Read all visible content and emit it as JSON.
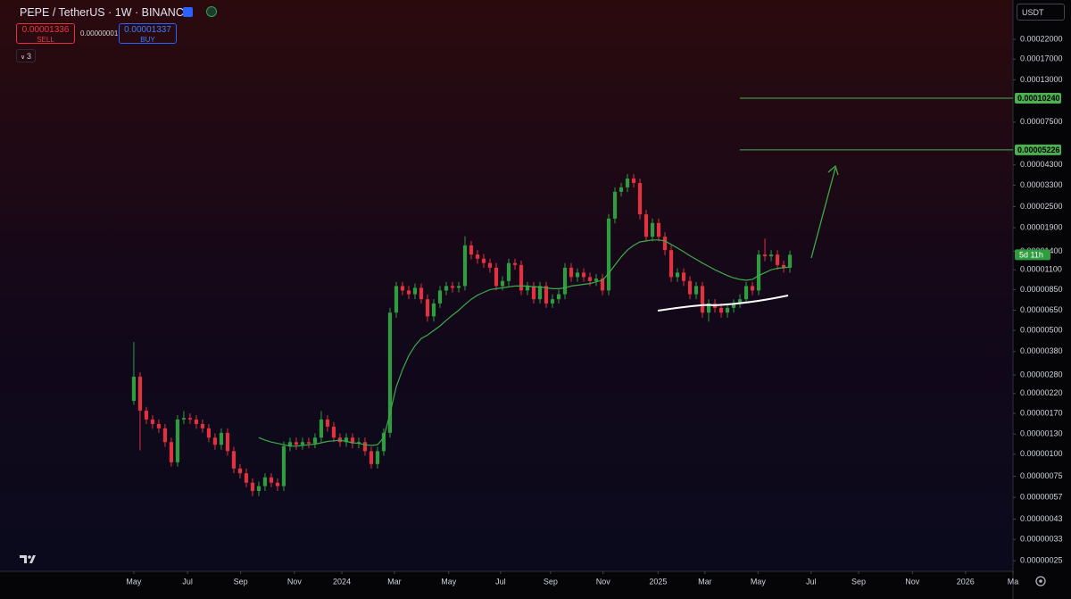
{
  "header": {
    "symbol": "PEPE / TetherUS · 1W · BINANCE",
    "sell_price": "0.00001336",
    "sell": "SELL",
    "spread": "0.00000001",
    "buy_price": "0.00001337",
    "buy": "BUY",
    "indicators": "3",
    "currency": "USDT",
    "countdown": "5d 11h"
  },
  "chart_data": {
    "type": "candlestick",
    "log_scale": true,
    "grid": false,
    "up_color": "#2f9d3f",
    "down_color": "#e0323f",
    "ma_color": "#3cab48",
    "level_color": "#4caf50",
    "x": [
      0,
      1,
      2,
      3,
      4,
      5,
      6,
      7,
      8,
      9,
      10,
      11,
      12,
      13,
      14,
      15,
      16,
      17,
      18,
      19,
      20,
      21,
      22,
      23,
      24,
      25,
      26,
      27,
      28,
      29,
      30,
      31,
      32,
      33,
      34,
      35,
      36,
      37,
      38,
      39,
      40,
      41,
      42,
      43,
      44,
      45,
      46,
      47,
      48,
      49,
      50,
      51,
      52,
      53,
      54,
      55,
      56,
      57,
      58,
      59,
      60,
      61,
      62,
      63,
      64,
      65,
      66,
      67,
      68,
      69,
      70,
      71,
      72,
      73,
      74,
      75,
      76,
      77,
      78,
      79,
      80,
      81,
      82,
      83,
      84,
      85,
      86,
      87,
      88,
      89,
      90,
      91,
      92,
      93,
      94,
      95,
      96,
      97,
      98,
      99,
      100,
      101,
      102,
      103,
      104,
      105
    ],
    "open": [
      2e-06,
      2.74e-06,
      1.76e-06,
      1.57e-06,
      1.48e-06,
      1.4e-06,
      1.17e-06,
      9e-07,
      1.57e-06,
      1.6e-06,
      1.57e-06,
      1.48e-06,
      1.4e-06,
      1.24e-06,
      1.13e-06,
      1.32e-06,
      1.04e-06,
      8.3e-07,
      7.8e-07,
      6.9e-07,
      6.2e-07,
      6.6e-07,
      7.4e-07,
      6.9e-07,
      6.6e-07,
      1.11e-06,
      1.17e-06,
      1.13e-06,
      1.17e-06,
      1.15e-06,
      1.24e-06,
      1.57e-06,
      1.43e-06,
      1.24e-06,
      1.17e-06,
      1.24e-06,
      1.15e-06,
      1.17e-06,
      1.04e-06,
      8.8e-07,
      1.04e-06,
      1.32e-06,
      6.3e-06,
      8.9e-06,
      8.4e-06,
      8e-06,
      8.7e-06,
      7.5e-06,
      6e-06,
      7.1e-06,
      8.4e-06,
      8.9e-06,
      8.7e-06,
      8.9e-06,
      1.51e-05,
      1.34e-05,
      1.27e-05,
      1.2e-05,
      1.13e-05,
      8.9e-06,
      9.5e-06,
      1.2e-05,
      1.17e-05,
      8.4e-06,
      8.9e-06,
      7.5e-06,
      8.9e-06,
      7.1e-06,
      7.5e-06,
      8e-06,
      1.13e-05,
      1e-05,
      1.06e-05,
      1e-05,
      9.5e-06,
      9.8e-06,
      8.4e-06,
      2.14e-05,
      3.03e-05,
      3.21e-05,
      3.6e-05,
      3.4e-05,
      2.26e-05,
      1.69e-05,
      2.02e-05,
      1.69e-05,
      1.42e-05,
      1e-05,
      1.06e-05,
      9.5e-06,
      8e-06,
      8.9e-06,
      6.3e-06,
      7.1e-06,
      6.7e-06,
      6.3e-06,
      6.7e-06,
      7.1e-06,
      7.5e-06,
      8.9e-06,
      8.4e-06,
      1.34e-05,
      1.31e-05,
      1.34e-05,
      1.17e-05,
      1.13e-05
    ],
    "high": [
      4.3e-06,
      2.9e-06,
      1.85e-06,
      1.66e-06,
      1.57e-06,
      1.48e-06,
      1.24e-06,
      1.66e-06,
      1.75e-06,
      1.7e-06,
      1.66e-06,
      1.57e-06,
      1.48e-06,
      1.31e-06,
      1.4e-06,
      1.4e-06,
      1.1e-06,
      8.8e-07,
      8.3e-07,
      7.3e-07,
      7e-07,
      7.8e-07,
      7.8e-07,
      7.3e-07,
      1.18e-06,
      1.24e-06,
      1.24e-06,
      1.24e-06,
      1.24e-06,
      1.31e-06,
      1.75e-06,
      1.66e-06,
      1.52e-06,
      1.31e-06,
      1.31e-06,
      1.31e-06,
      1.24e-06,
      1.24e-06,
      1.1e-06,
      1.1e-06,
      1.4e-06,
      6.7e-06,
      9.4e-06,
      9.4e-06,
      8.9e-06,
      9.2e-06,
      9.2e-06,
      8e-06,
      7.5e-06,
      8.9e-06,
      9.4e-06,
      9.4e-06,
      9.4e-06,
      1.7e-05,
      1.6e-05,
      1.42e-05,
      1.35e-05,
      1.27e-05,
      1.2e-05,
      1.01e-05,
      1.27e-05,
      1.27e-05,
      1.24e-05,
      9.4e-06,
      9.4e-06,
      9.4e-06,
      9.4e-06,
      8e-06,
      8.5e-06,
      1.2e-05,
      1.2e-05,
      1.12e-05,
      1.12e-05,
      1.06e-05,
      1.04e-05,
      1.04e-05,
      2.27e-05,
      3.21e-05,
      3.4e-05,
      3.82e-05,
      3.82e-05,
      3.6e-05,
      2.4e-05,
      2.14e-05,
      2.14e-05,
      1.79e-05,
      1.51e-05,
      1.12e-05,
      1.12e-05,
      1.01e-05,
      9.4e-06,
      9.4e-06,
      7.5e-06,
      7.5e-06,
      7.1e-06,
      7.1e-06,
      7.5e-06,
      8e-06,
      9.4e-06,
      9.4e-06,
      1.42e-05,
      1.65e-05,
      1.42e-05,
      1.42e-05,
      1.24e-05,
      1.41e-05
    ],
    "low": [
      1.9e-06,
      1.05e-06,
      1.48e-06,
      1.39e-06,
      1.32e-06,
      1.1e-06,
      8.5e-07,
      8.5e-07,
      1.48e-06,
      1.48e-06,
      1.39e-06,
      1.32e-06,
      1.17e-06,
      1.06e-06,
      1.06e-06,
      9.8e-07,
      7.8e-07,
      7.3e-07,
      6.5e-07,
      5.8e-07,
      5.8e-07,
      6.2e-07,
      6.5e-07,
      6.2e-07,
      6.2e-07,
      1.04e-06,
      1.06e-06,
      1.06e-06,
      1.08e-06,
      1.08e-06,
      1.17e-06,
      1.34e-06,
      1.17e-06,
      1.1e-06,
      1.1e-06,
      1.08e-06,
      1.08e-06,
      9.8e-07,
      8.3e-07,
      8.3e-07,
      9.8e-07,
      1.24e-06,
      5.9e-06,
      7.9e-06,
      7.5e-06,
      7.5e-06,
      7.1e-06,
      5.6e-06,
      5.6e-06,
      6.7e-06,
      7.9e-06,
      8.2e-06,
      8.2e-06,
      8.4e-06,
      1.26e-05,
      1.19e-05,
      1.13e-05,
      1.06e-05,
      8.4e-06,
      8.4e-06,
      8.9e-06,
      1.1e-05,
      7.9e-06,
      7.9e-06,
      7.1e-06,
      7.1e-06,
      6.7e-06,
      6.7e-06,
      7.1e-06,
      7.5e-06,
      9.4e-06,
      9.4e-06,
      9.4e-06,
      8.9e-06,
      8.9e-06,
      7.9e-06,
      7.9e-06,
      2.01e-05,
      2.85e-05,
      3.02e-05,
      3.2e-05,
      2.12e-05,
      1.59e-05,
      1.59e-05,
      1.59e-05,
      1.33e-05,
      9.4e-06,
      9.4e-06,
      8.9e-06,
      7.5e-06,
      7.5e-06,
      5.9e-06,
      5.6e-06,
      6.3e-06,
      5.9e-06,
      5.9e-06,
      6.3e-06,
      6.7e-06,
      7.1e-06,
      7.9e-06,
      7.9e-06,
      1.23e-05,
      1.23e-05,
      1.1e-05,
      1.06e-05,
      1.06e-05
    ],
    "close": [
      2.74e-06,
      1.76e-06,
      1.57e-06,
      1.48e-06,
      1.4e-06,
      1.17e-06,
      9e-07,
      1.57e-06,
      1.6e-06,
      1.57e-06,
      1.48e-06,
      1.4e-06,
      1.24e-06,
      1.13e-06,
      1.32e-06,
      1.04e-06,
      8.3e-07,
      7.8e-07,
      6.9e-07,
      6.2e-07,
      6.6e-07,
      7.4e-07,
      6.9e-07,
      6.6e-07,
      1.11e-06,
      1.17e-06,
      1.13e-06,
      1.17e-06,
      1.15e-06,
      1.24e-06,
      1.57e-06,
      1.43e-06,
      1.24e-06,
      1.17e-06,
      1.24e-06,
      1.15e-06,
      1.17e-06,
      1.04e-06,
      8.8e-07,
      1.04e-06,
      1.32e-06,
      6.3e-06,
      8.9e-06,
      8.4e-06,
      8e-06,
      8.7e-06,
      7.5e-06,
      6e-06,
      7.1e-06,
      8.4e-06,
      8.9e-06,
      8.7e-06,
      8.9e-06,
      1.51e-05,
      1.34e-05,
      1.27e-05,
      1.2e-05,
      1.13e-05,
      8.9e-06,
      9.5e-06,
      1.2e-05,
      1.17e-05,
      8.4e-06,
      8.9e-06,
      7.5e-06,
      8.9e-06,
      7.1e-06,
      7.5e-06,
      8e-06,
      1.13e-05,
      1e-05,
      1.06e-05,
      1e-05,
      9.5e-06,
      9.8e-06,
      8.4e-06,
      2.14e-05,
      3.03e-05,
      3.21e-05,
      3.6e-05,
      3.4e-05,
      2.26e-05,
      1.69e-05,
      2.02e-05,
      1.69e-05,
      1.42e-05,
      1e-05,
      1.06e-05,
      9.5e-06,
      8e-06,
      8.9e-06,
      6.3e-06,
      7.1e-06,
      6.7e-06,
      6.3e-06,
      6.7e-06,
      7.1e-06,
      7.5e-06,
      8.9e-06,
      8.4e-06,
      1.34e-05,
      1.31e-05,
      1.34e-05,
      1.17e-05,
      1.13e-05,
      1.336e-05
    ],
    "ma": [
      null,
      null,
      null,
      null,
      null,
      null,
      null,
      null,
      null,
      null,
      null,
      null,
      null,
      null,
      null,
      null,
      null,
      null,
      null,
      null,
      1.24e-06,
      1.2e-06,
      1.17e-06,
      1.15e-06,
      1.13e-06,
      1.11e-06,
      1.11e-06,
      1.12e-06,
      1.13e-06,
      1.14e-06,
      1.16e-06,
      1.18e-06,
      1.19e-06,
      1.2e-06,
      1.18e-06,
      1.16e-06,
      1.15e-06,
      1.13e-06,
      1.12e-06,
      1.13e-06,
      1.24e-06,
      1.7e-06,
      2.4e-06,
      3e-06,
      3.6e-06,
      4.1e-06,
      4.5e-06,
      4.7e-06,
      5e-06,
      5.3e-06,
      5.7e-06,
      6.1e-06,
      6.5e-06,
      7e-06,
      7.5e-06,
      7.9e-06,
      8.2e-06,
      8.5e-06,
      8.6e-06,
      8.7e-06,
      8.8e-06,
      8.9e-06,
      8.9e-06,
      8.9e-06,
      8.8e-06,
      8.8e-06,
      8.7e-06,
      8.6e-06,
      8.6e-06,
      8.7e-06,
      8.9e-06,
      9e-06,
      9.1e-06,
      9.2e-06,
      9.4e-06,
      9.6e-06,
      1.05e-05,
      1.17e-05,
      1.3e-05,
      1.42e-05,
      1.51e-05,
      1.58e-05,
      1.6e-05,
      1.62e-05,
      1.62e-05,
      1.6e-05,
      1.53e-05,
      1.46e-05,
      1.39e-05,
      1.32e-05,
      1.26e-05,
      1.2e-05,
      1.15e-05,
      1.1e-05,
      1.06e-05,
      1.02e-05,
      9.9e-06,
      9.7e-06,
      9.6e-06,
      9.7e-06,
      1.02e-05,
      1.06e-05,
      1.1e-05,
      1.12e-05,
      1.13e-05,
      1.14e-05
    ],
    "xlim": [
      -19.7,
      140.7
    ],
    "xticks": [
      {
        "value": 0,
        "label": "May"
      },
      {
        "value": 8.6,
        "label": "Jul"
      },
      {
        "value": 17.1,
        "label": "Sep"
      },
      {
        "value": 25.7,
        "label": "Nov"
      },
      {
        "value": 33.3,
        "label": "2024"
      },
      {
        "value": 41.7,
        "label": "Mar"
      },
      {
        "value": 50.4,
        "label": "May"
      },
      {
        "value": 58.7,
        "label": "Jul"
      },
      {
        "value": 66.7,
        "label": "Sep"
      },
      {
        "value": 75.1,
        "label": "Nov"
      },
      {
        "value": 83.9,
        "label": "2025"
      },
      {
        "value": 91.4,
        "label": "Mar"
      },
      {
        "value": 99.9,
        "label": "May"
      },
      {
        "value": 108.4,
        "label": "Jul"
      },
      {
        "value": 116,
        "label": "Sep"
      },
      {
        "value": 124.6,
        "label": "Nov"
      },
      {
        "value": 133.1,
        "label": "2026"
      },
      {
        "value": 140.7,
        "label": "Ma"
      }
    ],
    "ylim": [
      2.18e-07,
      0.000367
    ],
    "yticks": [
      {
        "value": 0.00022,
        "label": "0.00022000"
      },
      {
        "value": 0.00017,
        "label": "0.00017000"
      },
      {
        "value": 0.00013,
        "label": "0.00013000"
      },
      {
        "value": 7.5e-05,
        "label": "0.00007500"
      },
      {
        "value": 4.3e-05,
        "label": "0.00004300"
      },
      {
        "value": 3.3e-05,
        "label": "0.00003300"
      },
      {
        "value": 2.5e-05,
        "label": "0.00002500"
      },
      {
        "value": 1.9e-05,
        "label": "0.00001900"
      },
      {
        "value": 1.4e-05,
        "label": "0.00001400"
      },
      {
        "value": 1.1e-05,
        "label": "0.00001100"
      },
      {
        "value": 8.5e-06,
        "label": "0.00000850"
      },
      {
        "value": 6.5e-06,
        "label": "0.00000650"
      },
      {
        "value": 5e-06,
        "label": "0.00000500"
      },
      {
        "value": 3.8e-06,
        "label": "0.00000380"
      },
      {
        "value": 2.8e-06,
        "label": "0.00000280"
      },
      {
        "value": 2.2e-06,
        "label": "0.00000220"
      },
      {
        "value": 1.7e-06,
        "label": "0.00000170"
      },
      {
        "value": 1.3e-06,
        "label": "0.00000130"
      },
      {
        "value": 1e-06,
        "label": "0.00000100"
      },
      {
        "value": 7.5e-07,
        "label": "0.00000075"
      },
      {
        "value": 5.7e-07,
        "label": "0.00000057"
      },
      {
        "value": 4.3e-07,
        "label": "0.00000043"
      },
      {
        "value": 3.3e-07,
        "label": "0.00000033"
      },
      {
        "value": 2.5e-07,
        "label": "0.00000025"
      }
    ],
    "levels": [
      {
        "value": 0.0001024,
        "label": "0.00010240"
      },
      {
        "value": 5.226e-05,
        "label": "0.00005226"
      }
    ]
  }
}
